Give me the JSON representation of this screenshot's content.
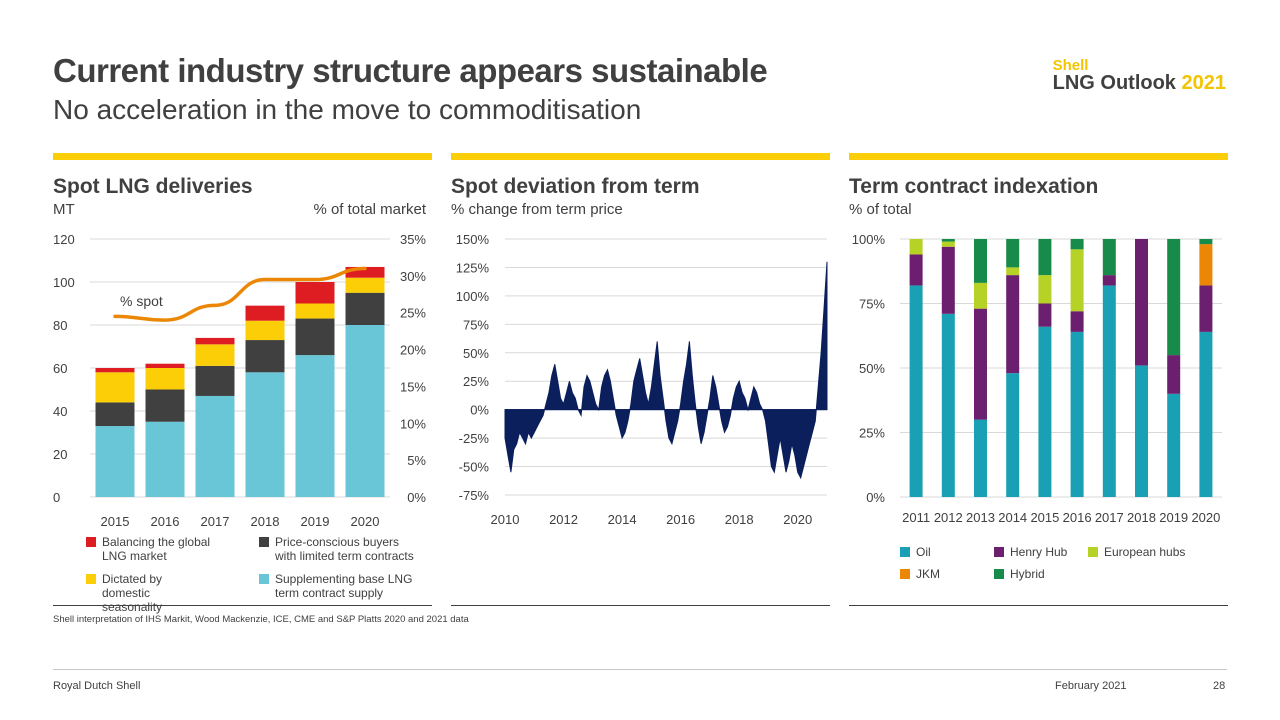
{
  "header": {
    "title": "Current industry structure appears sustainable",
    "subtitle": "No acceleration in the move to commoditisation",
    "brand_shell": "Shell",
    "brand_outlook": "LNG Outlook ",
    "brand_year": "2021"
  },
  "panels": {
    "spot": {
      "title": "Spot LNG deliveries",
      "unit_left": "MT",
      "unit_right": "% of total market",
      "annotation": "% spot"
    },
    "dev": {
      "title": "Spot deviation from term",
      "unit": "% change from term price"
    },
    "term": {
      "title": "Term contract indexation",
      "unit": "% of total"
    }
  },
  "legend": {
    "spot": [
      {
        "label": "Balancing the global LNG market",
        "color": "#dd1d21"
      },
      {
        "label": "Price-conscious buyers with limited term contracts",
        "color": "#404040"
      },
      {
        "label": "Dictated by domestic seasonality",
        "color": "#fbce07"
      },
      {
        "label": "Supplementing base LNG term contract supply",
        "color": "#69c6d6"
      }
    ],
    "term": [
      {
        "label": "Oil",
        "color": "#1aa0b4"
      },
      {
        "label": "Henry Hub",
        "color": "#6b1f6e"
      },
      {
        "label": "European hubs",
        "color": "#b6d227"
      },
      {
        "label": "JKM",
        "color": "#eb8705"
      },
      {
        "label": "Hybrid",
        "color": "#168b4a"
      }
    ]
  },
  "chart_data": [
    {
      "type": "bar",
      "title": "Spot LNG deliveries",
      "ylabel": "MT",
      "y2label": "% of total market",
      "categories": [
        "2015",
        "2016",
        "2017",
        "2018",
        "2019",
        "2020"
      ],
      "ylim": [
        0,
        120
      ],
      "yticks": [
        "0",
        "20",
        "40",
        "60",
        "80",
        "100",
        "120"
      ],
      "y2lim": [
        0,
        35
      ],
      "y2ticks": [
        "0%",
        "5%",
        "10%",
        "15%",
        "20%",
        "25%",
        "30%",
        "35%"
      ],
      "stacked": true,
      "series": [
        {
          "name": "Supplementing base LNG term contract supply",
          "color": "#69c6d6",
          "values": [
            33,
            35,
            47,
            58,
            66,
            80
          ]
        },
        {
          "name": "Price-conscious buyers with limited term contracts",
          "color": "#404040",
          "values": [
            11,
            15,
            14,
            15,
            17,
            15
          ]
        },
        {
          "name": "Dictated by domestic seasonality",
          "color": "#fbce07",
          "values": [
            14,
            10,
            10,
            9,
            7,
            7
          ]
        },
        {
          "name": "Balancing the global LNG market",
          "color": "#dd1d21",
          "values": [
            2,
            2,
            3,
            7,
            10,
            5
          ]
        }
      ],
      "line": {
        "name": "% spot",
        "color": "#eb8705",
        "values": [
          24.5,
          24,
          26,
          29.5,
          29.5,
          31
        ]
      }
    },
    {
      "type": "area",
      "title": "Spot deviation from term",
      "ylabel": "% change from term price",
      "xlim": [
        2010,
        2021
      ],
      "xticks": [
        "2010",
        "2012",
        "2014",
        "2016",
        "2018",
        "2020"
      ],
      "ylim": [
        -75,
        150
      ],
      "yticks": [
        "-75%",
        "-50%",
        "-25%",
        "0%",
        "25%",
        "50%",
        "75%",
        "100%",
        "125%",
        "150%"
      ],
      "color": "#0b1f5c",
      "x": [
        2010.0,
        2010.1,
        2010.2,
        2010.3,
        2010.4,
        2010.5,
        2010.6,
        2010.7,
        2010.8,
        2010.9,
        2011.0,
        2011.1,
        2011.2,
        2011.3,
        2011.4,
        2011.5,
        2011.6,
        2011.7,
        2011.8,
        2011.9,
        2012.0,
        2012.1,
        2012.2,
        2012.3,
        2012.4,
        2012.5,
        2012.6,
        2012.7,
        2012.8,
        2012.9,
        2013.0,
        2013.1,
        2013.2,
        2013.3,
        2013.4,
        2013.5,
        2013.6,
        2013.7,
        2013.8,
        2013.9,
        2014.0,
        2014.1,
        2014.2,
        2014.3,
        2014.4,
        2014.5,
        2014.6,
        2014.7,
        2014.8,
        2014.9,
        2015.0,
        2015.1,
        2015.2,
        2015.3,
        2015.4,
        2015.5,
        2015.6,
        2015.7,
        2015.8,
        2015.9,
        2016.0,
        2016.1,
        2016.2,
        2016.3,
        2016.4,
        2016.5,
        2016.6,
        2016.7,
        2016.8,
        2016.9,
        2017.0,
        2017.1,
        2017.2,
        2017.3,
        2017.4,
        2017.5,
        2017.6,
        2017.7,
        2017.8,
        2017.9,
        2018.0,
        2018.1,
        2018.2,
        2018.3,
        2018.4,
        2018.5,
        2018.6,
        2018.7,
        2018.8,
        2018.9,
        2019.0,
        2019.1,
        2019.2,
        2019.3,
        2019.4,
        2019.5,
        2019.6,
        2019.7,
        2019.8,
        2019.9,
        2020.0,
        2020.1,
        2020.2,
        2020.3,
        2020.4,
        2020.5,
        2020.6,
        2020.7,
        2020.8,
        2020.9,
        2021.0
      ],
      "y": [
        -25,
        -40,
        -55,
        -35,
        -30,
        -20,
        -25,
        -30,
        -20,
        -25,
        -20,
        -15,
        -10,
        -5,
        5,
        15,
        30,
        40,
        25,
        10,
        5,
        15,
        25,
        15,
        10,
        0,
        -5,
        20,
        30,
        25,
        15,
        5,
        0,
        20,
        30,
        35,
        25,
        10,
        -5,
        -15,
        -25,
        -20,
        -10,
        5,
        25,
        35,
        45,
        30,
        15,
        5,
        20,
        40,
        60,
        30,
        10,
        -10,
        -25,
        -30,
        -20,
        -10,
        5,
        25,
        40,
        60,
        30,
        5,
        -15,
        -30,
        -20,
        -5,
        10,
        30,
        20,
        5,
        -10,
        -20,
        -15,
        -5,
        10,
        20,
        25,
        15,
        10,
        0,
        10,
        20,
        15,
        5,
        0,
        -10,
        -30,
        -50,
        -55,
        -40,
        -25,
        -40,
        -55,
        -45,
        -30,
        -40,
        -55,
        -60,
        -50,
        -40,
        -30,
        -20,
        -10,
        20,
        50,
        90,
        130
      ]
    },
    {
      "type": "bar",
      "title": "Term contract indexation",
      "ylabel": "% of total",
      "categories": [
        "2011",
        "2012",
        "2013",
        "2014",
        "2015",
        "2016",
        "2017",
        "2018",
        "2019",
        "2020"
      ],
      "ylim": [
        0,
        100
      ],
      "yticks": [
        "0%",
        "25%",
        "50%",
        "75%",
        "100%"
      ],
      "stacked": true,
      "series": [
        {
          "name": "Oil",
          "color": "#1aa0b4",
          "values": [
            82,
            71,
            30,
            48,
            66,
            64,
            82,
            51,
            40,
            64
          ]
        },
        {
          "name": "Henry Hub",
          "color": "#6b1f6e",
          "values": [
            12,
            26,
            43,
            38,
            9,
            8,
            4,
            49,
            15,
            18
          ]
        },
        {
          "name": "European hubs",
          "color": "#b6d227",
          "values": [
            6,
            2,
            10,
            3,
            11,
            24,
            0,
            0,
            0,
            0
          ]
        },
        {
          "name": "JKM",
          "color": "#eb8705",
          "values": [
            0,
            0,
            0,
            0,
            0,
            0,
            0,
            0,
            0,
            16
          ]
        },
        {
          "name": "Hybrid",
          "color": "#168b4a",
          "values": [
            0,
            1,
            17,
            11,
            14,
            4,
            14,
            0,
            45,
            2
          ]
        }
      ]
    }
  ],
  "footer": {
    "source": "Shell interpretation of IHS Markit, Wood Mackenzie, ICE, CME and S&P Platts 2020 and 2021 data",
    "company": "Royal Dutch Shell",
    "date": "February 2021",
    "page": "28"
  }
}
